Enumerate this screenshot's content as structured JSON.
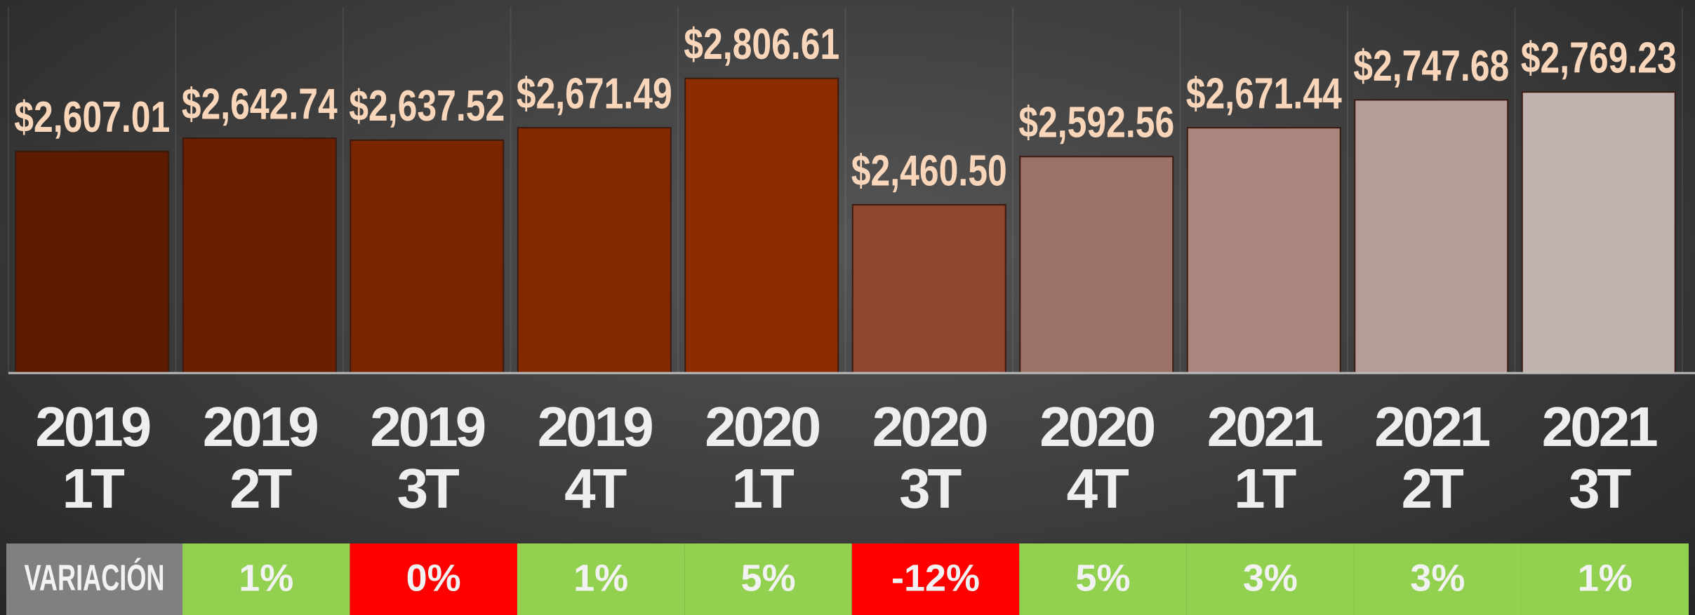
{
  "chart_data": {
    "type": "bar",
    "categories": [
      "2019\n1T",
      "2019\n2T",
      "2019\n3T",
      "2019\n4T",
      "2020\n1T",
      "2020\n3T",
      "2020\n4T",
      "2021\n1T",
      "2021\n2T",
      "2021\n3T"
    ],
    "values": [
      2607.01,
      2642.74,
      2637.52,
      2671.49,
      2806.61,
      2460.5,
      2592.56,
      2671.44,
      2747.68,
      2769.23
    ],
    "value_labels": [
      "$2,607.01",
      "$2,642.74",
      "$2,637.52",
      "$2,671.49",
      "$2,806.61",
      "$2,460.50",
      "$2,592.56",
      "$2,671.44",
      "$2,747.68",
      "$2,769.23"
    ],
    "colors": [
      "#5c1a00",
      "#6c1f00",
      "#782500",
      "#832900",
      "#8b2d00",
      "#8f4630",
      "#9c7167",
      "#a9867d",
      "#b59c98",
      "#c1b3b0"
    ],
    "ylim": [
      2000,
      3000
    ],
    "variation": {
      "label": "VARIACIÓN",
      "values": [
        1,
        0,
        1,
        5,
        -12,
        5,
        3,
        3,
        1
      ],
      "value_labels": [
        "1%",
        "0%",
        "1%",
        "5%",
        "-12%",
        "5%",
        "3%",
        "3%",
        "1%"
      ],
      "colors": [
        "#92d050",
        "#ff0000",
        "#92d050",
        "#92d050",
        "#ff0000",
        "#92d050",
        "#92d050",
        "#92d050",
        "#92d050"
      ]
    }
  }
}
